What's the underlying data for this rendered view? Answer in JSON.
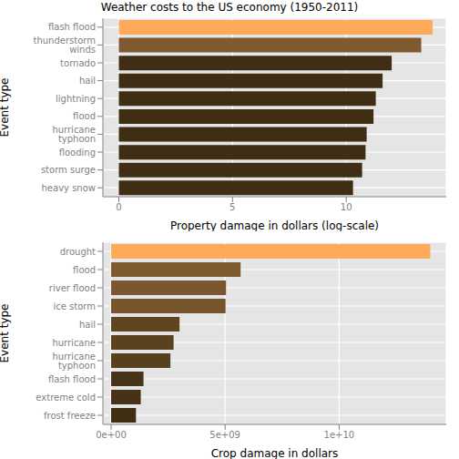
{
  "chart_data": [
    {
      "type": "bar",
      "orientation": "horizontal",
      "title": "Weather costs to the US economy (1950-2011)",
      "x_label": "Property damage in dollars (log-scale)",
      "y_label": "Event type",
      "categories": [
        "flash flood",
        "thunderstorm winds",
        "tornado",
        "hail",
        "lightning",
        "flood",
        "hurricane typhoon",
        "flooding",
        "storm surge",
        "heavy snow"
      ],
      "values": [
        13.8,
        13.3,
        12.0,
        11.6,
        11.3,
        11.2,
        10.9,
        10.85,
        10.7,
        10.3
      ],
      "colors": [
        "#FDAA5A",
        "#7F5A30",
        "#3F2D14",
        "#3F2D14",
        "#3F2D14",
        "#3F2D14",
        "#3F2D14",
        "#3F2D14",
        "#3F2D14",
        "#3F2D14"
      ],
      "xlim": [
        -0.7,
        14.4
      ],
      "xticks": [
        0,
        5,
        10
      ],
      "grid": true
    },
    {
      "type": "bar",
      "orientation": "horizontal",
      "x_label": "Crop damage in dollars",
      "y_label": "Event type",
      "categories": [
        "drought",
        "flood",
        "river flood",
        "ice storm",
        "hail",
        "hurricane",
        "hurricane typhoon",
        "flash flood",
        "extreme cold",
        "frost freeze"
      ],
      "values": [
        14000000000,
        5680000000,
        5040000000,
        5020000000,
        3000000000,
        2740000000,
        2600000000,
        1420000000,
        1300000000,
        1090000000
      ],
      "colors": [
        "#FDAA5A",
        "#7F5A30",
        "#7A572E",
        "#76542C",
        "#5E4421",
        "#5A411F",
        "#57401E",
        "#483419",
        "#453217",
        "#3F2D14"
      ],
      "xlim": [
        -360000000,
        14700000000
      ],
      "xticks": [
        {
          "value": 0,
          "label": "0e+00"
        },
        {
          "value": 5000000000,
          "label": "5e+09"
        },
        {
          "value": 10000000000,
          "label": "1e+10"
        }
      ],
      "grid": true
    }
  ]
}
